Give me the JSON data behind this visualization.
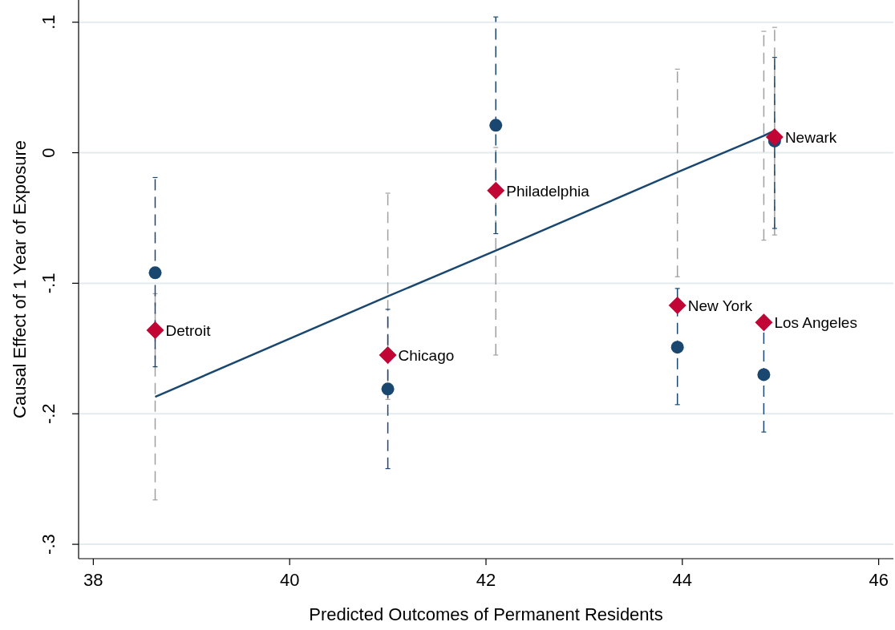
{
  "chart_data": {
    "type": "scatter",
    "xlabel": "Predicted Outcomes of Permanent Residents",
    "ylabel": "Causal Effect of 1 Year of Exposure",
    "x": [
      38.63,
      41.0,
      42.1,
      43.95,
      44.83,
      44.94
    ],
    "xlim": [
      37.85,
      46.15
    ],
    "xticks": [
      38,
      40,
      42,
      44,
      46
    ],
    "ylim": [
      -0.311,
      0.117
    ],
    "yticks": [
      {
        "value": 0.1,
        "label": ".1"
      },
      0,
      {
        "value": -0.1,
        "label": "-.1"
      },
      {
        "value": -0.2,
        "label": "-.2"
      },
      {
        "value": -0.3,
        "label": "-.3"
      }
    ],
    "grid": "y",
    "series": [
      {
        "type": "line",
        "marker": "none",
        "color": "#1a476f",
        "values": [
          -0.187,
          -0.11,
          -0.075,
          -0.015,
          0.013,
          0.017
        ],
        "errors": [
          [
            -0.266,
            -0.108
          ],
          [
            -0.189,
            -0.031
          ],
          [
            -0.155,
            0.004
          ],
          [
            -0.095,
            0.064
          ],
          [
            -0.067,
            0.093
          ],
          [
            -0.063,
            0.096
          ]
        ]
      },
      {
        "marker": "circle",
        "color": "#1a476f",
        "values": [
          -0.092,
          -0.181,
          0.021,
          -0.149,
          -0.17,
          0.009
        ],
        "errors": [
          [
            -0.164,
            -0.019
          ],
          [
            -0.242,
            -0.12
          ],
          [
            -0.062,
            0.104
          ],
          [
            -0.193,
            -0.104
          ],
          [
            -0.214,
            -0.126
          ],
          [
            -0.058,
            0.073
          ]
        ]
      },
      {
        "marker": "diamond",
        "color": "#c10534",
        "values": [
          -0.136,
          -0.155,
          -0.029,
          -0.117,
          -0.13,
          0.012
        ]
      }
    ],
    "annotations": [
      {
        "text": "Detroit",
        "x": 38.63,
        "y": -0.136
      },
      {
        "text": "Chicago",
        "x": 41.0,
        "y": -0.155
      },
      {
        "text": "Philadelphia",
        "x": 42.1,
        "y": -0.029
      },
      {
        "text": "New York",
        "x": 43.95,
        "y": -0.117
      },
      {
        "text": "Los Angeles",
        "x": 44.83,
        "y": -0.13
      },
      {
        "text": "Newark",
        "x": 44.94,
        "y": 0.012
      }
    ]
  }
}
